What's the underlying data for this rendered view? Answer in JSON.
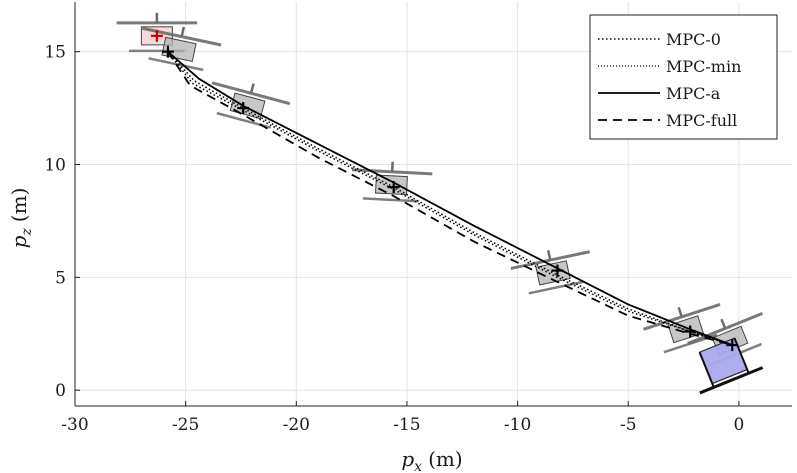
{
  "chart_data": {
    "type": "line",
    "xlabel": "p_x (m)",
    "ylabel": "p_z (m)",
    "xlabel_var": "p",
    "xlabel_sub": "x",
    "ylabel_var": "p",
    "ylabel_sub": "z",
    "label_unit": "(m)",
    "xlim": [
      -30,
      2.4
    ],
    "ylim": [
      -0.7,
      17.2
    ],
    "x_ticks": [
      -30,
      -25,
      -20,
      -15,
      -10,
      -5,
      0
    ],
    "y_ticks": [
      0,
      5,
      10,
      15
    ],
    "x_tick_labels": [
      "-30",
      "-25",
      "-20",
      "-15",
      "-10",
      "-5",
      "0"
    ],
    "y_tick_labels": [
      "0",
      "5",
      "10",
      "15"
    ],
    "grid": true,
    "legend_position": "top-right",
    "series": [
      {
        "name": "MPC-0",
        "style": "dotted",
        "x": [
          -25.8,
          -24.6,
          -22.4,
          -19.0,
          -15.6,
          -12.0,
          -8.2,
          -5.0,
          -2.2,
          -0.3
        ],
        "y": [
          15.0,
          13.7,
          12.5,
          10.7,
          9.0,
          7.0,
          5.1,
          3.6,
          2.6,
          2.0
        ]
      },
      {
        "name": "MPC-min",
        "style": "dotted",
        "x": [
          -25.8,
          -24.7,
          -22.4,
          -19.0,
          -15.6,
          -12.0,
          -8.2,
          -5.0,
          -2.2,
          -0.3
        ],
        "y": [
          15.0,
          13.6,
          12.4,
          10.6,
          8.9,
          6.9,
          5.0,
          3.5,
          2.6,
          2.0
        ]
      },
      {
        "name": "MPC-a",
        "style": "solid",
        "x": [
          -25.8,
          -24.4,
          -22.4,
          -19.0,
          -15.6,
          -12.0,
          -8.2,
          -5.0,
          -2.2,
          -0.3
        ],
        "y": [
          15.0,
          13.8,
          12.6,
          10.9,
          9.2,
          7.3,
          5.4,
          3.8,
          2.7,
          2.0
        ]
      },
      {
        "name": "MPC-full",
        "style": "dashed",
        "x": [
          -25.8,
          -24.8,
          -22.4,
          -19.0,
          -15.6,
          -12.0,
          -8.2,
          -5.0,
          -2.2,
          -0.3
        ],
        "y": [
          15.0,
          13.5,
          12.2,
          10.3,
          8.6,
          6.6,
          4.8,
          3.3,
          2.5,
          2.0
        ]
      }
    ],
    "waypoints": {
      "x": [
        -26.3,
        -25.8,
        -22.4,
        -15.6,
        -8.2,
        -2.2,
        -0.3
      ],
      "y": [
        15.7,
        15.0,
        12.5,
        9.0,
        5.3,
        2.6,
        2.0
      ]
    },
    "vehicle_poses": [
      {
        "x": -26.3,
        "y": 15.7,
        "angle_deg": 0,
        "kind": "start"
      },
      {
        "x": -25.3,
        "y": 15.1,
        "angle_deg": -12,
        "kind": "snapshot"
      },
      {
        "x": -22.2,
        "y": 12.6,
        "angle_deg": -15,
        "kind": "snapshot"
      },
      {
        "x": -15.7,
        "y": 9.1,
        "angle_deg": -3,
        "kind": "snapshot"
      },
      {
        "x": -8.4,
        "y": 5.2,
        "angle_deg": 12,
        "kind": "snapshot"
      },
      {
        "x": -2.4,
        "y": 2.7,
        "angle_deg": 18,
        "kind": "snapshot"
      },
      {
        "x": -0.4,
        "y": 2.2,
        "angle_deg": 22,
        "kind": "snapshot"
      },
      {
        "x": -0.7,
        "y": 1.3,
        "angle_deg": 22,
        "kind": "goal"
      }
    ],
    "colors": {
      "line": "#000000",
      "grid": "#e3e3e3",
      "vehicle_fill": "#b4b4b4",
      "vehicle_edge": "#444444",
      "rotor": "#6a6a6a",
      "start_fill": "#f7cccc",
      "start_marker": "#cc0000",
      "goal_fill": "#aaaaee",
      "goal_edge": "#222222"
    }
  }
}
